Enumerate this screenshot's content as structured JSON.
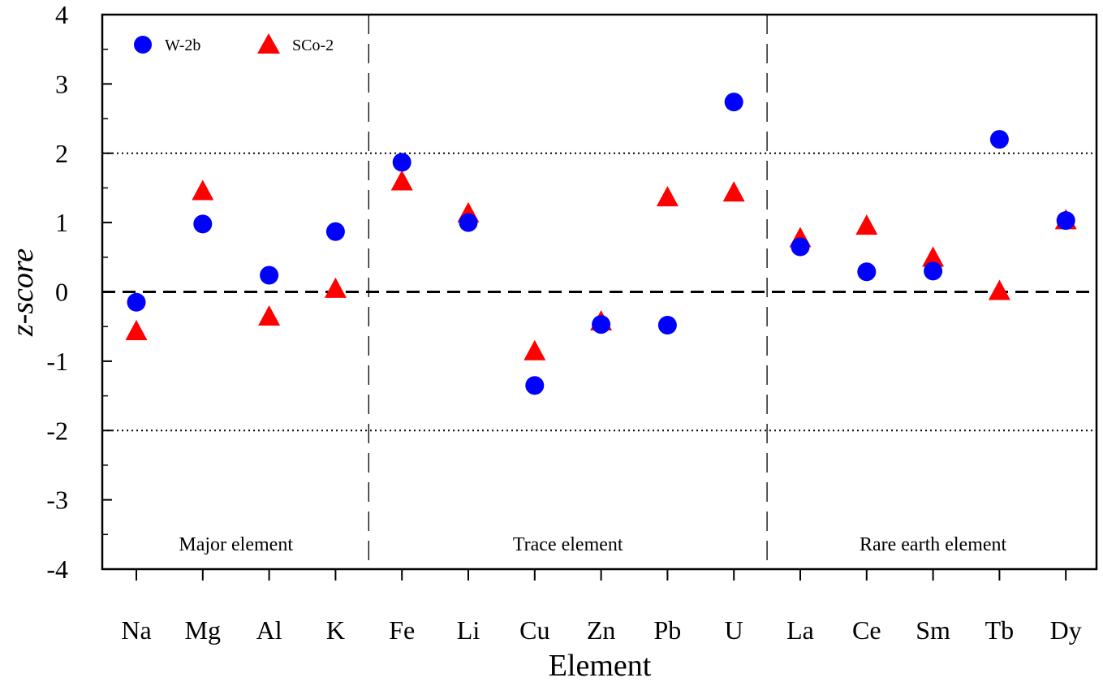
{
  "chart_data": {
    "type": "scatter",
    "title": "",
    "xlabel": "Element",
    "ylabel": "z-score",
    "ylim": [
      -4,
      4
    ],
    "yticks": [
      "-4",
      "-3",
      "-2",
      "-1",
      "0",
      "1",
      "2",
      "3",
      "4"
    ],
    "categories": [
      "Na",
      "Mg",
      "Al",
      "K",
      "Fe",
      "Li",
      "Cu",
      "Zn",
      "Pb",
      "U",
      "La",
      "Ce",
      "Sm",
      "Tb",
      "Dy"
    ],
    "series": [
      {
        "name": "W-2b",
        "marker": "circle",
        "color": "#0000ff",
        "values": [
          -0.15,
          0.98,
          0.24,
          0.87,
          1.87,
          1.0,
          -1.35,
          -0.47,
          -0.48,
          2.74,
          0.65,
          0.29,
          0.3,
          2.2,
          1.03
        ]
      },
      {
        "name": "SCo-2",
        "marker": "triangle",
        "color": "#ff0000",
        "values": [
          -0.55,
          1.47,
          -0.34,
          0.06,
          1.61,
          1.15,
          -0.84,
          -0.41,
          1.38,
          1.45,
          0.79,
          0.97,
          0.51,
          0.03,
          1.05
        ]
      }
    ],
    "reference_lines": [
      {
        "y": 0,
        "style": "dashed"
      },
      {
        "y": 2,
        "style": "dotted"
      },
      {
        "y": -2,
        "style": "dotted"
      }
    ],
    "groups": [
      {
        "label": "Major element",
        "start": 0,
        "end": 3
      },
      {
        "label": "Trace element",
        "start": 4,
        "end": 9
      },
      {
        "label": "Rare earth element",
        "start": 10,
        "end": 14
      }
    ],
    "legend": {
      "position": "top-left",
      "entries": [
        "W-2b",
        "SCo-2"
      ]
    }
  }
}
